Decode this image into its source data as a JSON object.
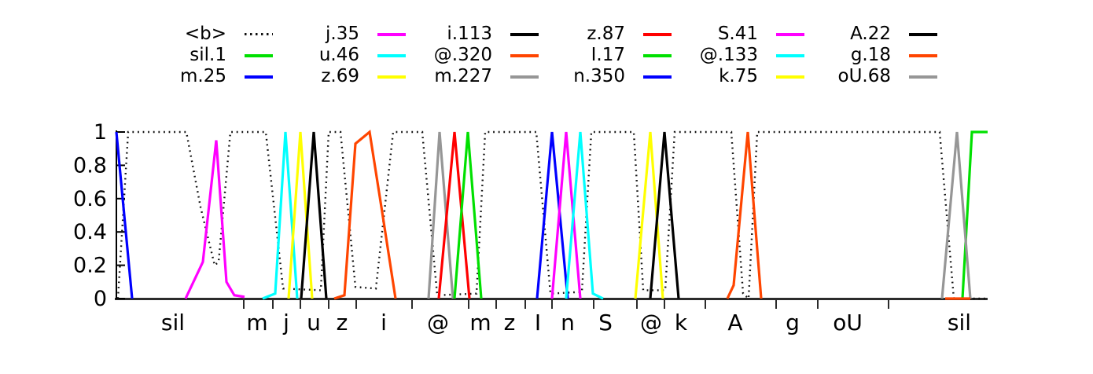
{
  "legend": {
    "columns": [
      [
        {
          "label": "<b>",
          "color": "#111111",
          "style": "dotted"
        },
        {
          "label": "sil.1",
          "color": "#00e000",
          "style": "solid"
        },
        {
          "label": "m.25",
          "color": "#0000ff",
          "style": "solid"
        }
      ],
      [
        {
          "label": "j.35",
          "color": "#ff00ff",
          "style": "solid"
        },
        {
          "label": "u.46",
          "color": "#00ffff",
          "style": "solid"
        },
        {
          "label": "z.69",
          "color": "#ffff00",
          "style": "solid"
        }
      ],
      [
        {
          "label": "i.113",
          "color": "#000000",
          "style": "solid"
        },
        {
          "label": "@.320",
          "color": "#ff4500",
          "style": "solid"
        },
        {
          "label": "m.227",
          "color": "#969696",
          "style": "solid"
        }
      ],
      [
        {
          "label": "z.87",
          "color": "#ff0000",
          "style": "solid"
        },
        {
          "label": "I.17",
          "color": "#00e000",
          "style": "solid"
        },
        {
          "label": "n.350",
          "color": "#0000ff",
          "style": "solid"
        }
      ],
      [
        {
          "label": "S.41",
          "color": "#ff00ff",
          "style": "solid"
        },
        {
          "label": "@.133",
          "color": "#00ffff",
          "style": "solid"
        },
        {
          "label": "k.75",
          "color": "#ffff00",
          "style": "solid"
        }
      ],
      [
        {
          "label": "A.22",
          "color": "#000000",
          "style": "solid"
        },
        {
          "label": "g.18",
          "color": "#ff4500",
          "style": "solid"
        },
        {
          "label": "oU.68",
          "color": "#969696",
          "style": "solid"
        }
      ]
    ]
  },
  "chart_data": {
    "type": "line",
    "title": "",
    "xlabel": "",
    "ylabel": "",
    "grid": false,
    "legend_position": "top-center",
    "x_units": "plot position (px from left axis, 0-1108)",
    "x_range": [
      0,
      1108
    ],
    "y_range": [
      0,
      1
    ],
    "y_ticks": [
      {
        "v": 0,
        "label": "0"
      },
      {
        "v": 0.2,
        "label": "0.2"
      },
      {
        "v": 0.4,
        "label": "0.4"
      },
      {
        "v": 0.6,
        "label": "0.6"
      },
      {
        "v": 0.8,
        "label": "0.8"
      },
      {
        "v": 1,
        "label": "1"
      }
    ],
    "x_ticks": [
      162,
      199,
      234,
      270,
      305,
      376,
      448,
      483,
      520,
      554,
      607,
      662,
      697,
      749,
      839,
      892,
      982
    ],
    "x_labels": [
      {
        "text": "sil",
        "x": 72
      },
      {
        "text": "m",
        "x": 179
      },
      {
        "text": "j",
        "x": 216
      },
      {
        "text": "u",
        "x": 251
      },
      {
        "text": "z",
        "x": 287
      },
      {
        "text": "i",
        "x": 340
      },
      {
        "text": "@",
        "x": 409
      },
      {
        "text": "m",
        "x": 463
      },
      {
        "text": "z",
        "x": 500
      },
      {
        "text": "I",
        "x": 536
      },
      {
        "text": "n",
        "x": 574
      },
      {
        "text": "S",
        "x": 622
      },
      {
        "text": "@",
        "x": 680
      },
      {
        "text": "k",
        "x": 718
      },
      {
        "text": "A",
        "x": 787
      },
      {
        "text": "g",
        "x": 860
      },
      {
        "text": "oU",
        "x": 930
      },
      {
        "text": "sil",
        "x": 1072
      }
    ],
    "series": [
      {
        "name": "<b>",
        "color": "#111111",
        "style": "dotted",
        "points": [
          [
            2,
            0
          ],
          [
            15,
            1
          ],
          [
            89,
            1
          ],
          [
            107,
            0.55
          ],
          [
            125,
            0.2
          ],
          [
            130,
            0.22
          ],
          [
            145,
            1
          ],
          [
            190,
            1
          ],
          [
            212,
            0.06
          ],
          [
            260,
            0.05
          ],
          [
            270,
            1
          ],
          [
            285,
            1
          ],
          [
            304,
            0.07
          ],
          [
            330,
            0.06
          ],
          [
            352,
            1
          ],
          [
            389,
            1
          ],
          [
            408,
            0.02
          ],
          [
            458,
            0.03
          ],
          [
            469,
            1
          ],
          [
            534,
            1
          ],
          [
            552,
            0.03
          ],
          [
            592,
            0.04
          ],
          [
            604,
            1
          ],
          [
            658,
            1
          ],
          [
            670,
            0.05
          ],
          [
            698,
            0.05
          ],
          [
            710,
            1
          ],
          [
            782,
            1
          ],
          [
            797,
            0.03
          ],
          [
            804,
            0
          ],
          [
            815,
            1
          ],
          [
            1047,
            1
          ],
          [
            1065,
            0
          ],
          [
            1108,
            0
          ]
        ]
      },
      {
        "name": "sil.1",
        "color": "#00e000",
        "style": "solid",
        "points": [
          [
            1076,
            0
          ],
          [
            1088,
            1
          ],
          [
            1108,
            1
          ]
        ]
      },
      {
        "name": "m.25",
        "color": "#0000ff",
        "style": "solid",
        "points": [
          [
            0,
            1
          ],
          [
            20,
            0
          ]
        ]
      },
      {
        "name": "j.35",
        "color": "#ff00ff",
        "style": "solid",
        "points": [
          [
            88,
            0
          ],
          [
            110,
            0.22
          ],
          [
            127,
            0.95
          ],
          [
            140,
            0.1
          ],
          [
            150,
            0.02
          ],
          [
            163,
            0.01
          ]
        ]
      },
      {
        "name": "u.46",
        "color": "#00ffff",
        "style": "solid",
        "points": [
          [
            186,
            0
          ],
          [
            202,
            0.03
          ],
          [
            215,
            1
          ],
          [
            230,
            0
          ]
        ]
      },
      {
        "name": "z.69",
        "color": "#ffff00",
        "style": "solid",
        "points": [
          [
            219,
            0
          ],
          [
            234,
            1
          ],
          [
            249,
            0
          ]
        ]
      },
      {
        "name": "i.113",
        "color": "#000000",
        "style": "solid",
        "points": [
          [
            235,
            0
          ],
          [
            251,
            1
          ],
          [
            267,
            0
          ]
        ]
      },
      {
        "name": "@.320",
        "color": "#ff4500",
        "style": "solid",
        "points": [
          [
            277,
            0
          ],
          [
            290,
            0.02
          ],
          [
            304,
            0.93
          ],
          [
            322,
            1
          ],
          [
            338,
            0.52
          ],
          [
            355,
            0
          ]
        ]
      },
      {
        "name": "m.227",
        "color": "#969696",
        "style": "solid",
        "points": [
          [
            397,
            0
          ],
          [
            411,
            1
          ],
          [
            428,
            0
          ]
        ]
      },
      {
        "name": "z.87",
        "color": "#ff0000",
        "style": "solid",
        "points": [
          [
            410,
            0
          ],
          [
            430,
            1
          ],
          [
            449,
            0
          ]
        ]
      },
      {
        "name": "I.17",
        "color": "#00e000",
        "style": "solid",
        "points": [
          [
            430,
            0
          ],
          [
            447,
            1
          ],
          [
            464,
            0
          ]
        ]
      },
      {
        "name": "n.350",
        "color": "#0000ff",
        "style": "solid",
        "points": [
          [
            535,
            0
          ],
          [
            554,
            1
          ],
          [
            574,
            0
          ]
        ]
      },
      {
        "name": "S.41",
        "color": "#ff00ff",
        "style": "solid",
        "points": [
          [
            554,
            0
          ],
          [
            572,
            1
          ],
          [
            590,
            0
          ]
        ]
      },
      {
        "name": "@.133",
        "color": "#00ffff",
        "style": "solid",
        "points": [
          [
            572,
            0
          ],
          [
            590,
            1
          ],
          [
            606,
            0.03
          ],
          [
            619,
            0
          ]
        ]
      },
      {
        "name": "k.75",
        "color": "#ffff00",
        "style": "solid",
        "points": [
          [
            660,
            0
          ],
          [
            679,
            1
          ],
          [
            695,
            0
          ]
        ]
      },
      {
        "name": "A.22",
        "color": "#000000",
        "style": "solid",
        "points": [
          [
            679,
            0
          ],
          [
            697,
            1
          ],
          [
            715,
            0
          ]
        ]
      },
      {
        "name": "g.18",
        "color": "#ff4500",
        "style": "solid",
        "points": [
          [
            777,
            0
          ],
          [
            785,
            0.08
          ],
          [
            803,
            1
          ],
          [
            820,
            0
          ]
        ]
      },
      {
        "name": "oU.68",
        "color": "#969696",
        "style": "solid",
        "points": [
          [
            1050,
            0
          ],
          [
            1069,
            1
          ],
          [
            1086,
            0
          ]
        ]
      },
      {
        "name": "g.18-zero-baseline",
        "color": "#ff4500",
        "style": "solid",
        "in_legend": false,
        "points": [
          [
            1054,
            0
          ],
          [
            1086,
            0
          ]
        ]
      }
    ],
    "colors": {
      "axis": "#2b2b2b",
      "background": "#ffffff",
      "dotted_line": "#111111"
    }
  }
}
